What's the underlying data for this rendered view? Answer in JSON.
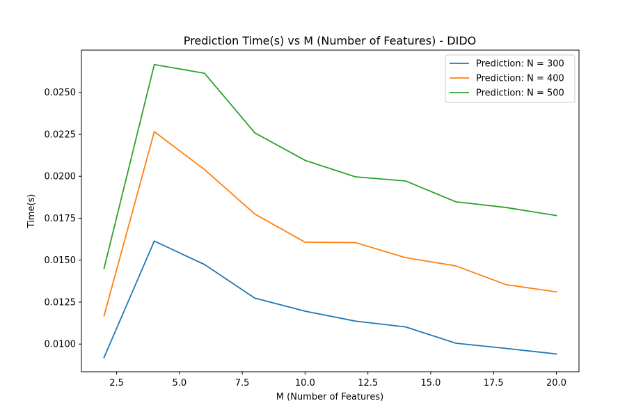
{
  "chart_data": {
    "type": "line",
    "title": "Prediction Time(s) vs M (Number of Features) - DIDO",
    "xlabel": "M (Number of Features)",
    "ylabel": "Time(s)",
    "x": [
      2,
      4,
      6,
      8,
      10,
      12,
      14,
      16,
      18,
      20
    ],
    "xlim": [
      1.1,
      20.9
    ],
    "ylim": [
      0.00835,
      0.02752
    ],
    "xticks": [
      2.5,
      5.0,
      7.5,
      10.0,
      12.5,
      15.0,
      17.5,
      20.0
    ],
    "xtick_labels": [
      "2.5",
      "5.0",
      "7.5",
      "10.0",
      "12.5",
      "15.0",
      "17.5",
      "20.0"
    ],
    "yticks": [
      0.01,
      0.0125,
      0.015,
      0.0175,
      0.02,
      0.0225,
      0.025
    ],
    "ytick_labels": [
      "0.0100",
      "0.0125",
      "0.0150",
      "0.0175",
      "0.0200",
      "0.0225",
      "0.0250"
    ],
    "grid": false,
    "legend_position": "top-right",
    "series": [
      {
        "name": "Prediction: N = 300",
        "color": "#1f77b4",
        "values": [
          0.0092,
          0.01614,
          0.01474,
          0.01274,
          0.01196,
          0.01137,
          0.01102,
          0.01005,
          0.00974,
          0.00941
        ]
      },
      {
        "name": "Prediction: N = 400",
        "color": "#ff7f0e",
        "values": [
          0.01168,
          0.02266,
          0.0204,
          0.01775,
          0.01607,
          0.01605,
          0.01515,
          0.01466,
          0.01354,
          0.01311
        ]
      },
      {
        "name": "Prediction: N = 500",
        "color": "#2ca02c",
        "values": [
          0.0145,
          0.02666,
          0.02614,
          0.02259,
          0.02095,
          0.01997,
          0.01972,
          0.01848,
          0.01814,
          0.01766
        ]
      }
    ]
  }
}
